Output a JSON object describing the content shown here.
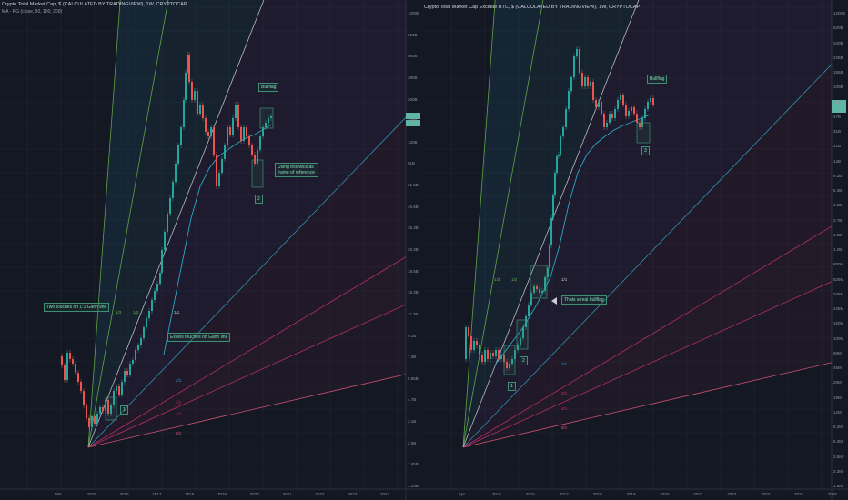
{
  "colors": {
    "background": "#141823",
    "grid": "#1f2531",
    "candle_up": "#26a69a",
    "candle_down": "#ef5350",
    "ma_line": "#2aa8c7",
    "fan_green": "#6ab04c",
    "fan_cyan": "#2fa0c0",
    "fan_white": "#c9ccd3",
    "fan_magenta": "#c0306e",
    "fan_pink": "#e0587a",
    "note_green": "#7fe0b8"
  },
  "left_panel": {
    "title": "Crypto Total Market Cap, $ (CALCULATED BY TRADINGVIEW), 1W, CRYPTOCAP",
    "indicator": "MA - RG (close, 50, 100, 200)",
    "annotations": {
      "two_touches": "Two touches on 1:1 Gann line",
      "excels": "Excels touches on Gann line",
      "bullflag": "Bullflag",
      "using_wick": "Using this wick as frame of reference",
      "num1": "1",
      "num2": "2"
    },
    "fan_labels": [
      "1/3",
      "1/2",
      "1/1",
      "2/1",
      "3/1",
      "4/1",
      "8/1"
    ],
    "x_ticks": [
      "Mar",
      "2015",
      "2016",
      "2017",
      "2018",
      "2019",
      "2020",
      "2021",
      "2022",
      "2023",
      "2024"
    ],
    "y_ticks": [
      "1200B",
      "810B",
      "560B",
      "380B",
      "260B",
      "180B",
      "120B",
      "81B",
      "61.5B",
      "45.5B",
      "35.3B",
      "25.3B",
      "19.5B",
      "15.3B",
      "11.3B",
      "9.1B",
      "7.3B",
      "5.95B",
      "4.7B",
      "3.1B",
      "2.0B",
      "1.65B",
      "1.25B"
    ]
  },
  "right_panel": {
    "title": "Crypto Total Market Cap Exclude BTC, $ (CALCULATED BY TRADINGVIEW), 1W, CRYPTOCAP",
    "annotations": {
      "thats_bullflag": "Thats a real bullflag",
      "bullflag": "Bullflag",
      "num1": "1",
      "num2": "2",
      "num3": "3"
    },
    "fan_labels": [
      "1/3",
      "1/2",
      "1/1",
      "2/1",
      "3/1",
      "4/1",
      "8/1"
    ],
    "x_ticks": [
      "Apr",
      "2015",
      "2016",
      "2017",
      "2018",
      "2019",
      "2020",
      "2021",
      "2022",
      "2023",
      "2024",
      "2025",
      "2026"
    ],
    "y_ticks": [
      "1200B",
      "520B",
      "340B",
      "225B",
      "155B",
      "100B",
      "67B",
      "47B",
      "31B",
      "21B",
      "14B",
      "9.3B",
      "6.3B",
      "4.2B",
      "2.7B",
      "1.8B",
      "1.2B",
      "800M",
      "525M",
      "345M",
      "225M",
      "150M",
      "100M",
      "69M",
      "45M",
      "29M",
      "19M",
      "12M",
      "8.2M",
      "5.3M",
      "3.5M",
      "2.3M",
      "1.5M"
    ]
  }
}
